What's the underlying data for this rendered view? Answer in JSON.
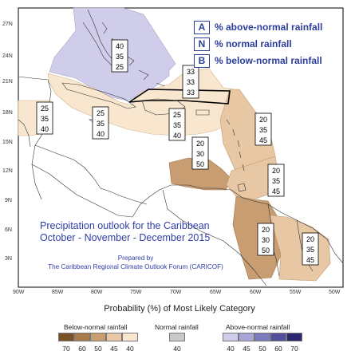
{
  "title_lines": [
    "Precipitation outlook for the Caribbean",
    "October - November - December 2015"
  ],
  "prepared_lines": [
    "Prepared by",
    "The Caribbean Regional Climate Outlook Forum (CARICOF)"
  ],
  "key": [
    {
      "letter": "A",
      "text": "% above-normal rainfall"
    },
    {
      "letter": "N",
      "text": "% normal rainfall"
    },
    {
      "letter": "B",
      "text": "% below-normal rainfall"
    }
  ],
  "lat_labels": [
    "27N",
    "24N",
    "21N",
    "18N",
    "15N",
    "12N",
    "9N",
    "6N",
    "3N"
  ],
  "lon_labels": [
    "90W",
    "85W",
    "80W",
    "75W",
    "70W",
    "65W",
    "60W",
    "55W",
    "50W"
  ],
  "probability_boxes": [
    {
      "name": "bahamas",
      "values": [
        "40",
        "35",
        "25"
      ]
    },
    {
      "name": "turks-caicos",
      "values": [
        "33",
        "33",
        "33"
      ]
    },
    {
      "name": "belize",
      "values": [
        "25",
        "35",
        "40"
      ]
    },
    {
      "name": "jamaica-cuba",
      "values": [
        "25",
        "35",
        "40"
      ]
    },
    {
      "name": "hispaniola",
      "values": [
        "25",
        "35",
        "40"
      ]
    },
    {
      "name": "leeward-islands",
      "values": [
        "20",
        "35",
        "45"
      ]
    },
    {
      "name": "abc-islands",
      "values": [
        "20",
        "30",
        "50"
      ]
    },
    {
      "name": "windward-islands",
      "values": [
        "20",
        "35",
        "45"
      ]
    },
    {
      "name": "guyana",
      "values": [
        "20",
        "30",
        "50"
      ]
    },
    {
      "name": "suriname",
      "values": [
        "20",
        "35",
        "45"
      ]
    }
  ],
  "legend": {
    "title": "Probability (%) of Most Likely Category",
    "below": {
      "label": "Below-normal rainfall",
      "values": [
        "70",
        "60",
        "50",
        "45",
        "40"
      ],
      "colors": [
        "#7a5228",
        "#a8794a",
        "#c99d72",
        "#e7c7a4",
        "#f8e6cf"
      ]
    },
    "normal": {
      "label": "Normal rainfall",
      "values": [
        "40"
      ],
      "colors": [
        "#c8c8c8"
      ]
    },
    "above": {
      "label": "Above-normal rainfall",
      "values": [
        "40",
        "45",
        "50",
        "60",
        "70"
      ],
      "colors": [
        "#cfcde9",
        "#a8a6d6",
        "#7d79bd",
        "#534f9c",
        "#2b2770"
      ]
    }
  },
  "colors": {
    "above_40": "#cfcde9",
    "below_40": "#f8e6cf",
    "below_45": "#e7c7a4",
    "below_50": "#c99d72",
    "equal_chance_outline": "#000000",
    "title_blue": "#2f3fa8"
  }
}
